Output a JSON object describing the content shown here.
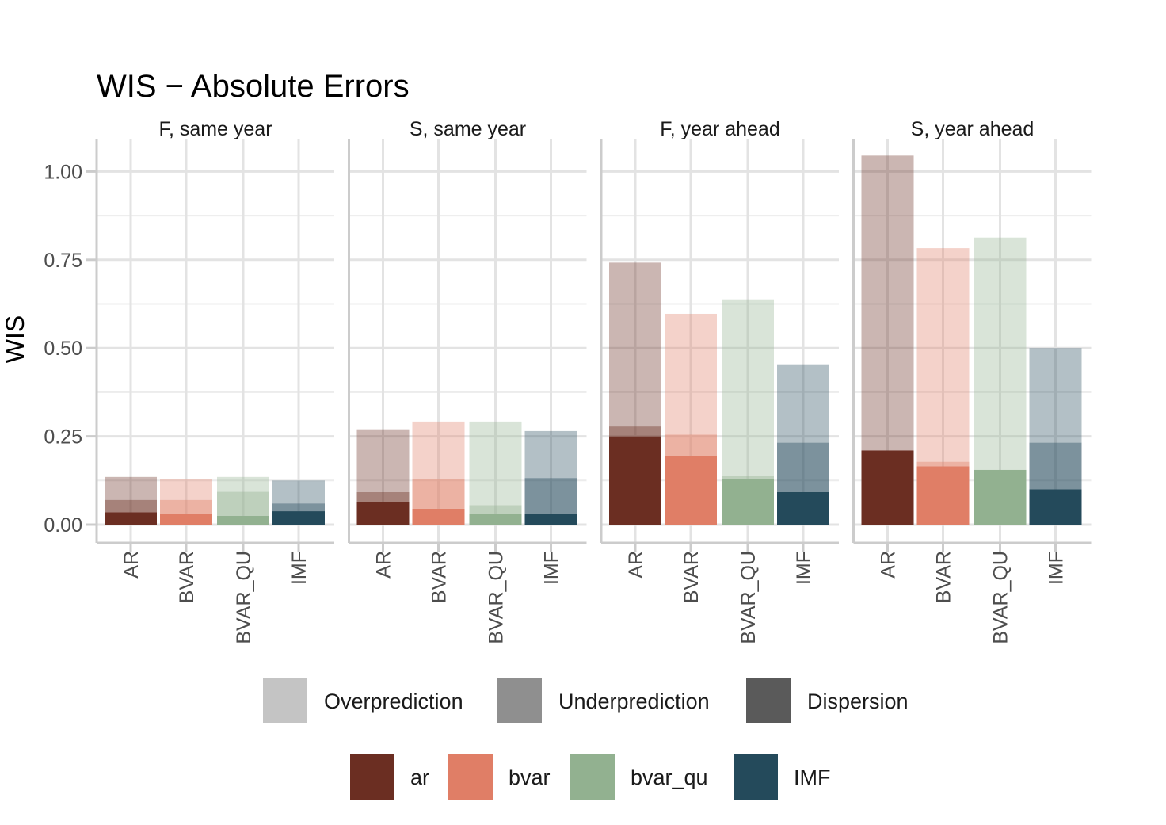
{
  "chart_data": {
    "type": "bar",
    "title": "WIS − Absolute Errors",
    "ylabel": "WIS",
    "xlabel": "",
    "ylim": [
      0,
      1.1
    ],
    "yticks": [
      0,
      0.25,
      0.5,
      0.75,
      1.0
    ],
    "ytick_labels": [
      "0.00",
      "0.25",
      "0.50",
      "0.75",
      "1.00"
    ],
    "grid": true,
    "categories": [
      "AR",
      "BVAR",
      "BVAR_QU",
      "IMF"
    ],
    "component_order": [
      "dispersion",
      "underprediction",
      "overprediction"
    ],
    "panels": [
      {
        "label": "F, same year",
        "bars": [
          {
            "category": "AR",
            "dispersion": 0.035,
            "underprediction": 0.035,
            "overprediction": 0.065
          },
          {
            "category": "BVAR",
            "dispersion": 0.03,
            "underprediction": 0.04,
            "overprediction": 0.06
          },
          {
            "category": "BVAR_QU",
            "dispersion": 0.025,
            "underprediction": 0.068,
            "overprediction": 0.042
          },
          {
            "category": "IMF",
            "dispersion": 0.038,
            "underprediction": 0.022,
            "overprediction": 0.065
          }
        ]
      },
      {
        "label": "S, same year",
        "bars": [
          {
            "category": "AR",
            "dispersion": 0.065,
            "underprediction": 0.027,
            "overprediction": 0.178
          },
          {
            "category": "BVAR",
            "dispersion": 0.045,
            "underprediction": 0.085,
            "overprediction": 0.162
          },
          {
            "category": "BVAR_QU",
            "dispersion": 0.03,
            "underprediction": 0.025,
            "overprediction": 0.237
          },
          {
            "category": "IMF",
            "dispersion": 0.03,
            "underprediction": 0.102,
            "overprediction": 0.133
          }
        ]
      },
      {
        "label": "F, year ahead",
        "bars": [
          {
            "category": "AR",
            "dispersion": 0.25,
            "underprediction": 0.028,
            "overprediction": 0.464
          },
          {
            "category": "BVAR",
            "dispersion": 0.195,
            "underprediction": 0.06,
            "overprediction": 0.342
          },
          {
            "category": "BVAR_QU",
            "dispersion": 0.13,
            "underprediction": 0.008,
            "overprediction": 0.5
          },
          {
            "category": "IMF",
            "dispersion": 0.092,
            "underprediction": 0.14,
            "overprediction": 0.222
          }
        ]
      },
      {
        "label": "S, year ahead",
        "bars": [
          {
            "category": "AR",
            "dispersion": 0.21,
            "underprediction": 0,
            "overprediction": 0.835
          },
          {
            "category": "BVAR",
            "dispersion": 0.165,
            "underprediction": 0.013,
            "overprediction": 0.605
          },
          {
            "category": "BVAR_QU",
            "dispersion": 0.155,
            "underprediction": 0,
            "overprediction": 0.658
          },
          {
            "category": "IMF",
            "dispersion": 0.1,
            "underprediction": 0.132,
            "overprediction": 0.268
          }
        ]
      }
    ],
    "legend_components": [
      {
        "key": "overprediction",
        "label": "Overprediction",
        "swatch": "#c4c4c4"
      },
      {
        "key": "underprediction",
        "label": "Underprediction",
        "swatch": "#8f8f8f"
      },
      {
        "key": "dispersion",
        "label": "Dispersion",
        "swatch": "#5a5a5a"
      }
    ],
    "legend_models": [
      {
        "category": "AR",
        "label": "ar",
        "color": "#6b2e22"
      },
      {
        "category": "BVAR",
        "label": "bvar",
        "color": "#e07e66"
      },
      {
        "category": "BVAR_QU",
        "label": "bvar_qu",
        "color": "#92b190"
      },
      {
        "category": "IMF",
        "label": "IMF",
        "color": "#244a5b"
      }
    ],
    "legend_placement": "bottom",
    "component_opacity": {
      "dispersion": 1.0,
      "underprediction": 0.6,
      "overprediction": 0.35
    }
  }
}
